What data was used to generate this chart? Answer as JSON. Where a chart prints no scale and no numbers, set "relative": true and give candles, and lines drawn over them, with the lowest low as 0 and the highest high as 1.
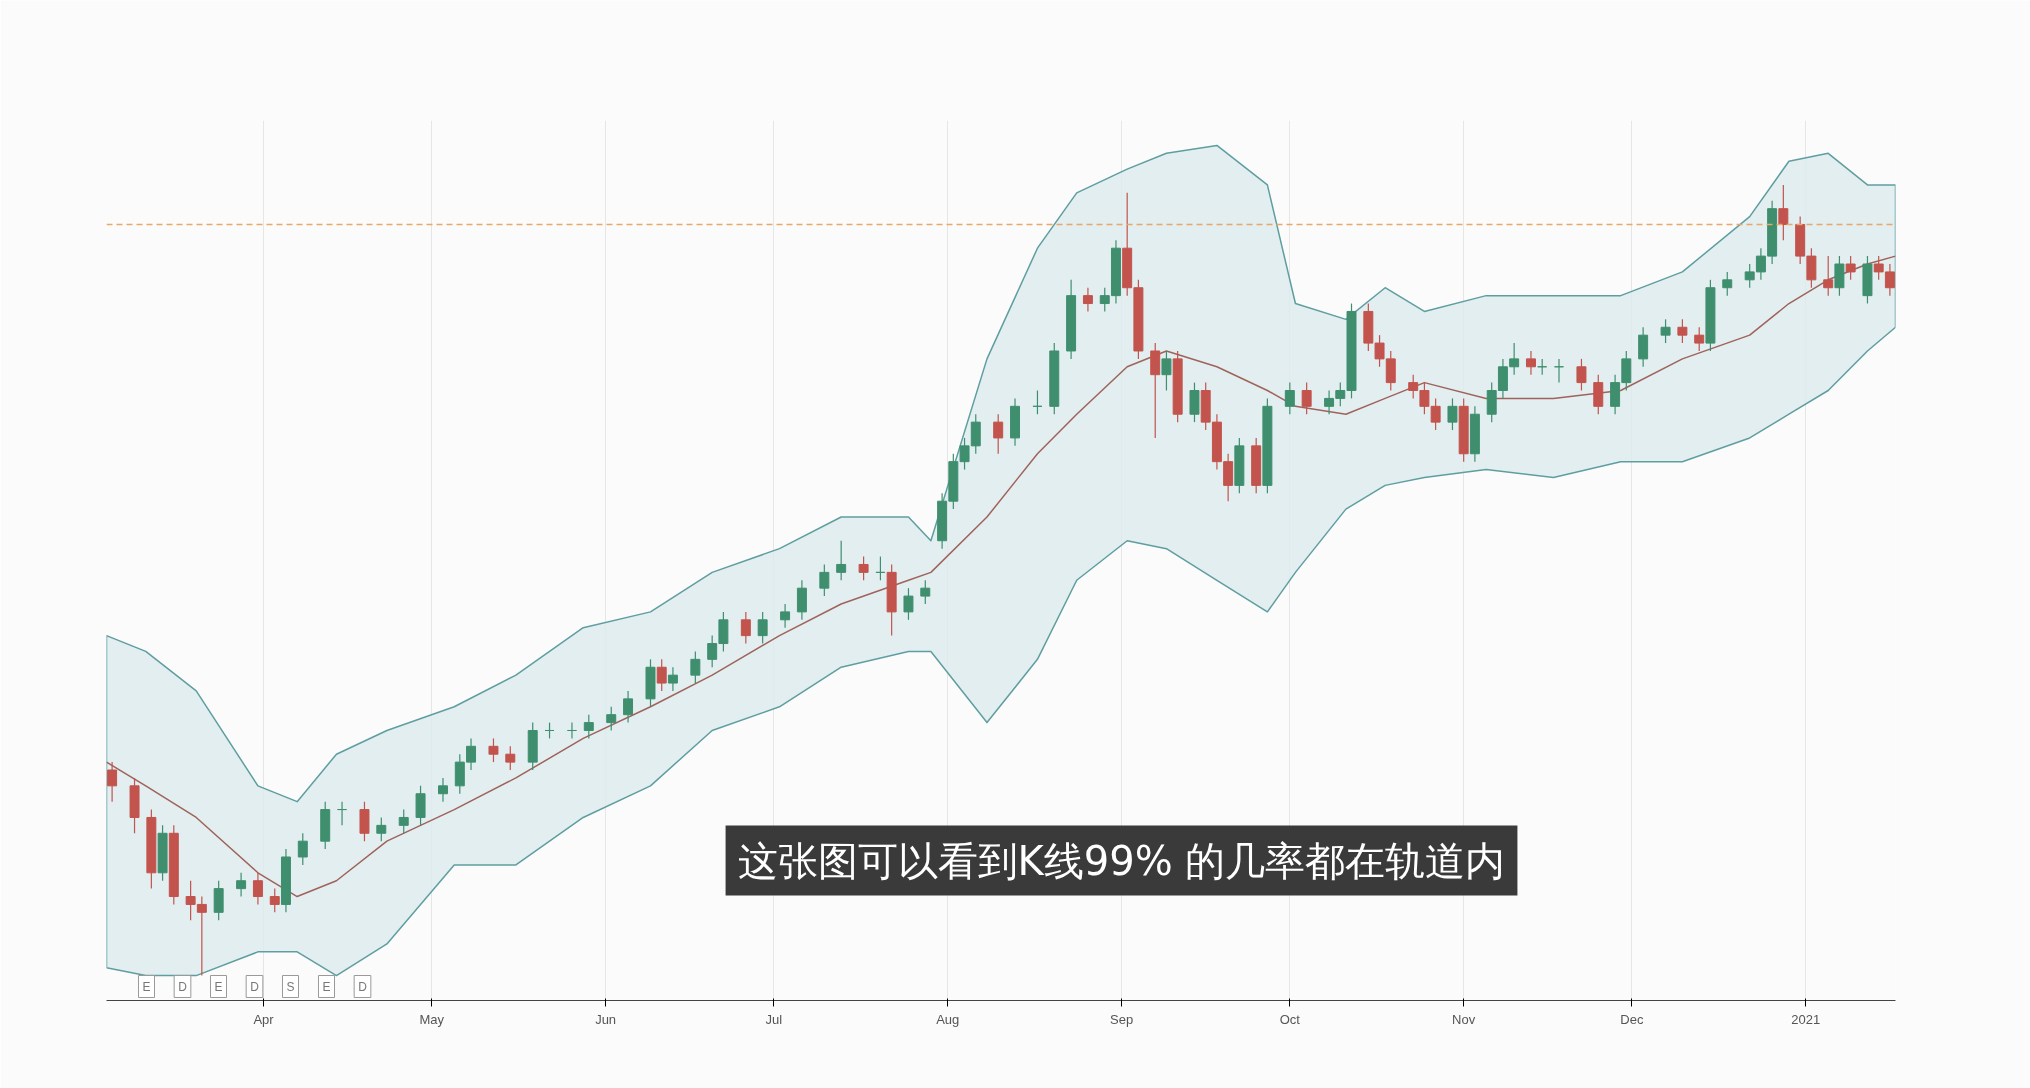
{
  "chart_data": {
    "type": "candlestick",
    "relative": true,
    "grid": "x",
    "xlim": [
      "2020-03-04",
      "2021-01-17"
    ],
    "xticks": [
      {
        "value": "2020-04-01",
        "label": "Apr"
      },
      {
        "value": "2020-05-01",
        "label": "May"
      },
      {
        "value": "2020-06-01",
        "label": "Jun"
      },
      {
        "value": "2020-07-01",
        "label": "Jul"
      },
      {
        "value": "2020-08-01",
        "label": "Aug"
      },
      {
        "value": "2020-09-01",
        "label": "Sep"
      },
      {
        "value": "2020-10-01",
        "label": "Oct"
      },
      {
        "value": "2020-11-01",
        "label": "Nov"
      },
      {
        "value": "2020-12-01",
        "label": "Dec"
      },
      {
        "value": "2021-01-01",
        "label": "2021"
      }
    ],
    "x": [
      "2020-03-05",
      "2020-03-09",
      "2020-03-12",
      "2020-03-14",
      "2020-03-16",
      "2020-03-19",
      "2020-03-21",
      "2020-03-24",
      "2020-03-28",
      "2020-03-31",
      "2020-04-03",
      "2020-04-05",
      "2020-04-08",
      "2020-04-12",
      "2020-04-15",
      "2020-04-19",
      "2020-04-22",
      "2020-04-26",
      "2020-04-29",
      "2020-05-03",
      "2020-05-06",
      "2020-05-08",
      "2020-05-12",
      "2020-05-15",
      "2020-05-19",
      "2020-05-22",
      "2020-05-26",
      "2020-05-29",
      "2020-06-02",
      "2020-06-05",
      "2020-06-09",
      "2020-06-11",
      "2020-06-13",
      "2020-06-17",
      "2020-06-20",
      "2020-06-22",
      "2020-06-26",
      "2020-06-29",
      "2020-07-03",
      "2020-07-06",
      "2020-07-10",
      "2020-07-13",
      "2020-07-17",
      "2020-07-20",
      "2020-07-22",
      "2020-07-25",
      "2020-07-28",
      "2020-07-31",
      "2020-08-02",
      "2020-08-04",
      "2020-08-06",
      "2020-08-10",
      "2020-08-13",
      "2020-08-17",
      "2020-08-20",
      "2020-08-23",
      "2020-08-26",
      "2020-08-29",
      "2020-08-31",
      "2020-09-02",
      "2020-09-04",
      "2020-09-07",
      "2020-09-09",
      "2020-09-11",
      "2020-09-14",
      "2020-09-16",
      "2020-09-18",
      "2020-09-20",
      "2020-09-22",
      "2020-09-25",
      "2020-09-27",
      "2020-10-01",
      "2020-10-04",
      "2020-10-08",
      "2020-10-10",
      "2020-10-12",
      "2020-10-15",
      "2020-10-17",
      "2020-10-19",
      "2020-10-23",
      "2020-10-25",
      "2020-10-27",
      "2020-10-30",
      "2020-11-01",
      "2020-11-03",
      "2020-11-06",
      "2020-11-08",
      "2020-11-10",
      "2020-11-13",
      "2020-11-15",
      "2020-11-18",
      "2020-11-22",
      "2020-11-25",
      "2020-11-28",
      "2020-11-30",
      "2020-12-03",
      "2020-12-07",
      "2020-12-10",
      "2020-12-13",
      "2020-12-15",
      "2020-12-18",
      "2020-12-22",
      "2020-12-24",
      "2020-12-26",
      "2020-12-28",
      "2020-12-31",
      "2021-01-02",
      "2021-01-05",
      "2021-01-07",
      "2021-01-09",
      "2021-01-12",
      "2021-01-14",
      "2021-01-16"
    ],
    "ohlc": [
      [
        0.26,
        0.27,
        0.22,
        0.24
      ],
      [
        0.24,
        0.25,
        0.18,
        0.2
      ],
      [
        0.2,
        0.21,
        0.11,
        0.13
      ],
      [
        0.13,
        0.19,
        0.12,
        0.18
      ],
      [
        0.18,
        0.19,
        0.09,
        0.1
      ],
      [
        0.1,
        0.12,
        0.07,
        0.09
      ],
      [
        0.09,
        0.1,
        0.0,
        0.08
      ],
      [
        0.08,
        0.12,
        0.07,
        0.11
      ],
      [
        0.11,
        0.13,
        0.1,
        0.12
      ],
      [
        0.12,
        0.13,
        0.09,
        0.1
      ],
      [
        0.1,
        0.11,
        0.08,
        0.09
      ],
      [
        0.09,
        0.16,
        0.08,
        0.15
      ],
      [
        0.15,
        0.18,
        0.14,
        0.17
      ],
      [
        0.17,
        0.22,
        0.16,
        0.21
      ],
      [
        0.21,
        0.22,
        0.19,
        0.21
      ],
      [
        0.21,
        0.22,
        0.17,
        0.18
      ],
      [
        0.18,
        0.2,
        0.17,
        0.19
      ],
      [
        0.19,
        0.21,
        0.18,
        0.2
      ],
      [
        0.2,
        0.24,
        0.19,
        0.23
      ],
      [
        0.23,
        0.25,
        0.22,
        0.24
      ],
      [
        0.24,
        0.28,
        0.23,
        0.27
      ],
      [
        0.27,
        0.3,
        0.26,
        0.29
      ],
      [
        0.29,
        0.3,
        0.27,
        0.28
      ],
      [
        0.28,
        0.29,
        0.26,
        0.27
      ],
      [
        0.27,
        0.32,
        0.26,
        0.31
      ],
      [
        0.31,
        0.32,
        0.3,
        0.31
      ],
      [
        0.31,
        0.32,
        0.3,
        0.31
      ],
      [
        0.31,
        0.33,
        0.3,
        0.32
      ],
      [
        0.32,
        0.34,
        0.31,
        0.33
      ],
      [
        0.33,
        0.36,
        0.32,
        0.35
      ],
      [
        0.35,
        0.4,
        0.34,
        0.39
      ],
      [
        0.39,
        0.4,
        0.36,
        0.37
      ],
      [
        0.37,
        0.39,
        0.36,
        0.38
      ],
      [
        0.38,
        0.41,
        0.37,
        0.4
      ],
      [
        0.4,
        0.43,
        0.39,
        0.42
      ],
      [
        0.42,
        0.46,
        0.41,
        0.45
      ],
      [
        0.45,
        0.46,
        0.42,
        0.43
      ],
      [
        0.43,
        0.46,
        0.42,
        0.45
      ],
      [
        0.45,
        0.47,
        0.44,
        0.46
      ],
      [
        0.46,
        0.5,
        0.45,
        0.49
      ],
      [
        0.49,
        0.52,
        0.48,
        0.51
      ],
      [
        0.51,
        0.55,
        0.5,
        0.52
      ],
      [
        0.52,
        0.53,
        0.5,
        0.51
      ],
      [
        0.51,
        0.53,
        0.5,
        0.51
      ],
      [
        0.51,
        0.52,
        0.43,
        0.46
      ],
      [
        0.46,
        0.49,
        0.45,
        0.48
      ],
      [
        0.48,
        0.5,
        0.47,
        0.49
      ],
      [
        0.55,
        0.61,
        0.54,
        0.6
      ],
      [
        0.6,
        0.66,
        0.59,
        0.65
      ],
      [
        0.65,
        0.68,
        0.64,
        0.67
      ],
      [
        0.67,
        0.71,
        0.66,
        0.7
      ],
      [
        0.7,
        0.71,
        0.66,
        0.68
      ],
      [
        0.68,
        0.73,
        0.67,
        0.72
      ],
      [
        0.72,
        0.74,
        0.71,
        0.72
      ],
      [
        0.72,
        0.8,
        0.71,
        0.79
      ],
      [
        0.79,
        0.88,
        0.78,
        0.86
      ],
      [
        0.86,
        0.87,
        0.84,
        0.85
      ],
      [
        0.85,
        0.87,
        0.84,
        0.86
      ],
      [
        0.86,
        0.93,
        0.85,
        0.92
      ],
      [
        0.92,
        0.99,
        0.86,
        0.87
      ],
      [
        0.87,
        0.88,
        0.78,
        0.79
      ],
      [
        0.79,
        0.8,
        0.68,
        0.76
      ],
      [
        0.76,
        0.79,
        0.74,
        0.78
      ],
      [
        0.78,
        0.79,
        0.7,
        0.71
      ],
      [
        0.71,
        0.75,
        0.7,
        0.74
      ],
      [
        0.74,
        0.75,
        0.69,
        0.7
      ],
      [
        0.7,
        0.71,
        0.64,
        0.65
      ],
      [
        0.65,
        0.66,
        0.6,
        0.62
      ],
      [
        0.62,
        0.68,
        0.61,
        0.67
      ],
      [
        0.67,
        0.68,
        0.61,
        0.62
      ],
      [
        0.62,
        0.73,
        0.61,
        0.72
      ],
      [
        0.72,
        0.75,
        0.71,
        0.74
      ],
      [
        0.74,
        0.75,
        0.71,
        0.72
      ],
      [
        0.72,
        0.74,
        0.71,
        0.73
      ],
      [
        0.73,
        0.75,
        0.72,
        0.74
      ],
      [
        0.74,
        0.85,
        0.73,
        0.84
      ],
      [
        0.84,
        0.85,
        0.79,
        0.8
      ],
      [
        0.8,
        0.81,
        0.77,
        0.78
      ],
      [
        0.78,
        0.79,
        0.74,
        0.75
      ],
      [
        0.75,
        0.76,
        0.73,
        0.74
      ],
      [
        0.74,
        0.75,
        0.71,
        0.72
      ],
      [
        0.72,
        0.73,
        0.69,
        0.7
      ],
      [
        0.7,
        0.73,
        0.69,
        0.72
      ],
      [
        0.72,
        0.73,
        0.65,
        0.66
      ],
      [
        0.66,
        0.72,
        0.65,
        0.71
      ],
      [
        0.71,
        0.75,
        0.7,
        0.74
      ],
      [
        0.74,
        0.78,
        0.73,
        0.77
      ],
      [
        0.77,
        0.8,
        0.76,
        0.78
      ],
      [
        0.78,
        0.79,
        0.76,
        0.77
      ],
      [
        0.77,
        0.78,
        0.76,
        0.77
      ],
      [
        0.77,
        0.78,
        0.75,
        0.77
      ],
      [
        0.77,
        0.78,
        0.74,
        0.75
      ],
      [
        0.75,
        0.76,
        0.71,
        0.72
      ],
      [
        0.72,
        0.76,
        0.71,
        0.75
      ],
      [
        0.75,
        0.79,
        0.74,
        0.78
      ],
      [
        0.78,
        0.82,
        0.77,
        0.81
      ],
      [
        0.81,
        0.83,
        0.8,
        0.82
      ],
      [
        0.82,
        0.83,
        0.8,
        0.81
      ],
      [
        0.81,
        0.82,
        0.79,
        0.8
      ],
      [
        0.8,
        0.88,
        0.79,
        0.87
      ],
      [
        0.87,
        0.89,
        0.86,
        0.88
      ],
      [
        0.88,
        0.9,
        0.87,
        0.89
      ],
      [
        0.89,
        0.92,
        0.88,
        0.91
      ],
      [
        0.91,
        0.98,
        0.9,
        0.97
      ],
      [
        0.97,
        1.0,
        0.93,
        0.95
      ],
      [
        0.95,
        0.96,
        0.9,
        0.91
      ],
      [
        0.91,
        0.92,
        0.87,
        0.88
      ],
      [
        0.88,
        0.91,
        0.86,
        0.87
      ],
      [
        0.87,
        0.91,
        0.86,
        0.9
      ],
      [
        0.9,
        0.91,
        0.88,
        0.89
      ],
      [
        0.86,
        0.91,
        0.85,
        0.9
      ],
      [
        0.9,
        0.91,
        0.88,
        0.89
      ],
      [
        0.89,
        0.9,
        0.86,
        0.87
      ]
    ],
    "series": [
      {
        "type": "line",
        "color": "#a0635b",
        "x": [
          "2020-03-04",
          "2020-03-11",
          "2020-03-20",
          "2020-03-31",
          "2020-04-07",
          "2020-04-14",
          "2020-04-23",
          "2020-05-05",
          "2020-05-16",
          "2020-05-28",
          "2020-06-09",
          "2020-06-20",
          "2020-07-02",
          "2020-07-13",
          "2020-07-25",
          "2020-07-29",
          "2020-08-08",
          "2020-08-17",
          "2020-08-24",
          "2020-09-02",
          "2020-09-09",
          "2020-09-18",
          "2020-09-27",
          "2020-10-02",
          "2020-10-11",
          "2020-10-18",
          "2020-10-25",
          "2020-11-05",
          "2020-11-17",
          "2020-11-29",
          "2020-12-10",
          "2020-12-22",
          "2020-12-29",
          "2021-01-05",
          "2021-01-12",
          "2021-01-17"
        ],
        "values": [
          0.27,
          0.24,
          0.2,
          0.13,
          0.1,
          0.12,
          0.17,
          0.21,
          0.25,
          0.3,
          0.34,
          0.38,
          0.43,
          0.47,
          0.5,
          0.51,
          0.58,
          0.66,
          0.71,
          0.77,
          0.79,
          0.77,
          0.74,
          0.72,
          0.71,
          0.73,
          0.75,
          0.73,
          0.73,
          0.74,
          0.78,
          0.81,
          0.85,
          0.88,
          0.9,
          0.91
        ],
        "upper": [
          0.43,
          0.41,
          0.36,
          0.24,
          0.22,
          0.28,
          0.31,
          0.34,
          0.38,
          0.44,
          0.46,
          0.51,
          0.54,
          0.58,
          0.58,
          0.55,
          0.78,
          0.92,
          0.99,
          1.02,
          1.04,
          1.05,
          1.0,
          0.85,
          0.83,
          0.87,
          0.84,
          0.86,
          0.86,
          0.86,
          0.89,
          0.96,
          1.03,
          1.04,
          1.0,
          1.0
        ],
        "lower": [
          0.01,
          0.0,
          0.0,
          0.03,
          0.03,
          0.0,
          0.04,
          0.14,
          0.14,
          0.2,
          0.24,
          0.31,
          0.34,
          0.39,
          0.41,
          0.41,
          0.32,
          0.4,
          0.5,
          0.55,
          0.54,
          0.5,
          0.46,
          0.51,
          0.59,
          0.62,
          0.63,
          0.64,
          0.63,
          0.65,
          0.65,
          0.68,
          0.71,
          0.74,
          0.79,
          0.82
        ]
      }
    ],
    "ref_lines": [
      {
        "axis": "y",
        "value": 0.95,
        "color": "#e8a86a",
        "line_style": "dashed"
      }
    ],
    "annotations": [
      "E",
      "D",
      "E",
      "D",
      "S",
      "E",
      "D",
      "这张图可以看到K线99% 的几率都在轨道内"
    ]
  }
}
